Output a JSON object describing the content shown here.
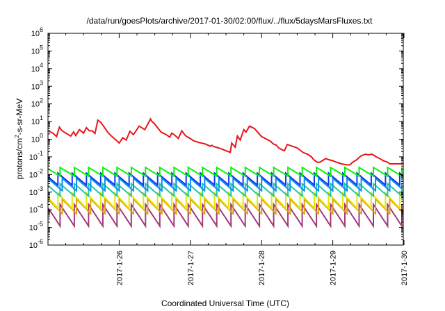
{
  "chart_data": {
    "type": "line",
    "title": "/data/run/goesPlots/archive/2017-01-30/02:00/flux/../flux/5daysMarsFluxes.txt",
    "xlabel": "Coordinated Universal Time (UTC)",
    "ylabel": "protons/cm²-s-sr-MeV",
    "yscale": "log",
    "ylim": [
      1e-06,
      1000000.0
    ],
    "xlim": [
      0,
      4.99
    ],
    "x_units": "days since 2017-01-25T00:00 UTC",
    "x_ticks": [
      {
        "pos": 1,
        "label": "2017-1-26"
      },
      {
        "pos": 2,
        "label": "2017-1-27"
      },
      {
        "pos": 3,
        "label": "2017-1-28"
      },
      {
        "pos": 4,
        "label": "2017-1-29"
      },
      {
        "pos": 5,
        "label": "2017-1-30"
      }
    ],
    "y_ticks": [
      {
        "exp": "-6",
        "value": 1e-06
      },
      {
        "exp": "-5",
        "value": 1e-05
      },
      {
        "exp": "-4",
        "value": 0.0001
      },
      {
        "exp": "-3",
        "value": 0.001
      },
      {
        "exp": "-2",
        "value": 0.01
      },
      {
        "exp": "-1",
        "value": 0.1
      },
      {
        "exp": "0",
        "value": 1
      },
      {
        "exp": "1",
        "value": 10
      },
      {
        "exp": "2",
        "value": 100
      },
      {
        "exp": "3",
        "value": 1000
      },
      {
        "exp": "4",
        "value": 10000
      },
      {
        "exp": "5",
        "value": 100000
      },
      {
        "exp": "6",
        "value": 1000000
      }
    ],
    "y_tick_base": "10",
    "grid": false,
    "legend": "none",
    "series": [
      {
        "color": "#e8141c",
        "x": [
          0.0,
          0.07,
          0.12,
          0.16,
          0.19,
          0.25,
          0.32,
          0.36,
          0.39,
          0.44,
          0.5,
          0.54,
          0.58,
          0.62,
          0.66,
          0.7,
          0.74,
          0.78,
          0.82,
          0.85,
          0.9,
          0.94,
          0.97,
          1.0,
          1.05,
          1.1,
          1.15,
          1.2,
          1.28,
          1.36,
          1.44,
          1.46,
          1.49,
          1.53,
          1.56,
          1.59,
          1.64,
          1.68,
          1.71,
          1.74,
          1.78,
          1.83,
          1.88,
          1.93,
          1.98,
          2.05,
          2.12,
          2.2,
          2.28,
          2.3,
          2.33,
          2.42,
          2.5,
          2.56,
          2.58,
          2.63,
          2.66,
          2.7,
          2.75,
          2.78,
          2.83,
          2.9,
          3.0,
          3.07,
          3.13,
          3.16,
          3.21,
          3.24,
          3.28,
          3.32,
          3.36,
          3.43,
          3.5,
          3.58,
          3.66,
          3.7,
          3.73,
          3.78,
          3.82,
          3.85,
          3.9,
          3.94,
          4.0,
          4.05,
          4.12,
          4.2,
          4.24,
          4.28,
          4.31,
          4.34,
          4.38,
          4.41,
          4.46,
          4.5,
          4.55,
          4.58,
          4.61,
          4.66,
          4.71,
          4.77,
          4.8,
          4.84,
          4.9,
          4.99
        ],
        "y": [
          3.0,
          2.2,
          1.4,
          4.8,
          3.2,
          2.2,
          1.5,
          2.6,
          1.6,
          3.5,
          2.2,
          4.5,
          3.0,
          3.0,
          2.1,
          12,
          9,
          5.5,
          3.2,
          2.2,
          1.4,
          1.0,
          0.8,
          0.6,
          1.2,
          0.9,
          2.8,
          1.8,
          5.5,
          3.5,
          14,
          10,
          8.0,
          5.0,
          3.5,
          2.5,
          2.0,
          1.6,
          1.3,
          2.2,
          1.7,
          1.1,
          3.0,
          1.6,
          1.2,
          0.8,
          0.65,
          0.55,
          0.4,
          0.45,
          0.38,
          0.3,
          0.22,
          0.18,
          0.6,
          0.35,
          1.5,
          0.9,
          3.5,
          2.5,
          5.5,
          4.0,
          1.4,
          1.0,
          0.75,
          0.55,
          0.45,
          0.32,
          0.26,
          0.22,
          0.5,
          0.4,
          0.32,
          0.18,
          0.13,
          0.1,
          0.07,
          0.05,
          0.05,
          0.06,
          0.08,
          0.07,
          0.06,
          0.05,
          0.04,
          0.035,
          0.035,
          0.05,
          0.06,
          0.07,
          0.1,
          0.12,
          0.14,
          0.13,
          0.14,
          0.12,
          0.1,
          0.08,
          0.06,
          0.05,
          0.04,
          0.04,
          0.04,
          0.04
        ]
      },
      {
        "color": "#0bf00b",
        "sawtooth": {
          "peak": 0.025,
          "trough": 0.008,
          "period": 0.2
        }
      },
      {
        "color": "#0a3cf0",
        "sawtooth": {
          "peak": 0.012,
          "trough": 0.0025,
          "period": 0.2
        }
      },
      {
        "color": "#0a8cf0",
        "sawtooth": {
          "peak": 0.006,
          "trough": 0.0012,
          "period": 0.2
        }
      },
      {
        "color": "#1ec8a0",
        "sawtooth": {
          "peak": 0.003,
          "trough": 0.0006,
          "period": 0.2
        }
      },
      {
        "color": "#e6e600",
        "sawtooth": {
          "peak": 0.0009,
          "trough": 0.00012,
          "period": 0.2
        }
      },
      {
        "color": "#e0a010",
        "sawtooth": {
          "peak": 0.0004,
          "trough": 6e-05,
          "period": 0.2
        }
      },
      {
        "color": "#a03a7a",
        "sawtooth": {
          "peak": 0.0002,
          "trough": 1.2e-05,
          "period": 0.2
        }
      }
    ]
  }
}
